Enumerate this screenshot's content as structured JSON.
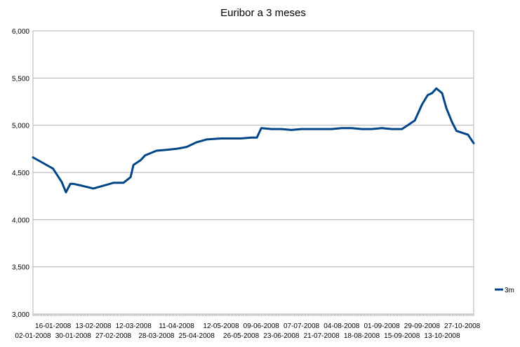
{
  "chart_data": {
    "type": "line",
    "title": "Euribor a 3 meses",
    "xlabel": "",
    "ylabel": "",
    "ylim": [
      3.0,
      6.0
    ],
    "yticks": [
      "3,000",
      "3,500",
      "4,000",
      "4,500",
      "5,000",
      "5,500",
      "6,000"
    ],
    "ytick_values": [
      3.0,
      3.5,
      4.0,
      4.5,
      5.0,
      5.5,
      6.0
    ],
    "grid": true,
    "legend_position": "right",
    "xtick_labels_row2": [
      "02-01-2008",
      "30-01-2008",
      "27-02-2008",
      "28-03-2008",
      "25-04-2008",
      "26-05-2008",
      "23-06-2008",
      "21-07-2008",
      "18-08-2008",
      "15-09-2008",
      "13-10-2008"
    ],
    "xtick_labels_row1": [
      "16-01-2008",
      "13-02-2008",
      "12-03-2008",
      "11-04-2008",
      "12-05-2008",
      "09-06-2008",
      "07-07-2008",
      "04-08-2008",
      "01-09-2008",
      "29-09-2008",
      "27-10-2008"
    ],
    "series": [
      {
        "name": "3m",
        "color": "#004586",
        "x": [
          "02-01-2008",
          "09-01-2008",
          "16-01-2008",
          "22-01-2008",
          "25-01-2008",
          "28-01-2008",
          "30-01-2008",
          "05-02-2008",
          "13-02-2008",
          "20-02-2008",
          "27-02-2008",
          "05-03-2008",
          "10-03-2008",
          "12-03-2008",
          "17-03-2008",
          "20-03-2008",
          "28-03-2008",
          "04-04-2008",
          "11-04-2008",
          "18-04-2008",
          "25-04-2008",
          "02-05-2008",
          "12-05-2008",
          "19-05-2008",
          "26-05-2008",
          "02-06-2008",
          "06-06-2008",
          "09-06-2008",
          "16-06-2008",
          "23-06-2008",
          "30-06-2008",
          "07-07-2008",
          "14-07-2008",
          "21-07-2008",
          "28-07-2008",
          "04-08-2008",
          "11-08-2008",
          "18-08-2008",
          "25-08-2008",
          "01-09-2008",
          "08-09-2008",
          "15-09-2008",
          "19-09-2008",
          "24-09-2008",
          "29-09-2008",
          "03-10-2008",
          "06-10-2008",
          "09-10-2008",
          "13-10-2008",
          "16-10-2008",
          "20-10-2008",
          "23-10-2008",
          "27-10-2008",
          "31-10-2008",
          "04-11-2008"
        ],
        "values": [
          4.66,
          4.6,
          4.54,
          4.4,
          4.29,
          4.38,
          4.38,
          4.36,
          4.33,
          4.36,
          4.39,
          4.39,
          4.45,
          4.58,
          4.63,
          4.68,
          4.73,
          4.74,
          4.75,
          4.77,
          4.82,
          4.85,
          4.86,
          4.86,
          4.86,
          4.87,
          4.87,
          4.97,
          4.96,
          4.96,
          4.95,
          4.96,
          4.96,
          4.96,
          4.96,
          4.97,
          4.97,
          4.96,
          4.96,
          4.97,
          4.96,
          4.96,
          5.0,
          5.05,
          5.22,
          5.32,
          5.34,
          5.39,
          5.34,
          5.18,
          5.03,
          4.94,
          4.92,
          4.9,
          4.81
        ]
      }
    ]
  }
}
